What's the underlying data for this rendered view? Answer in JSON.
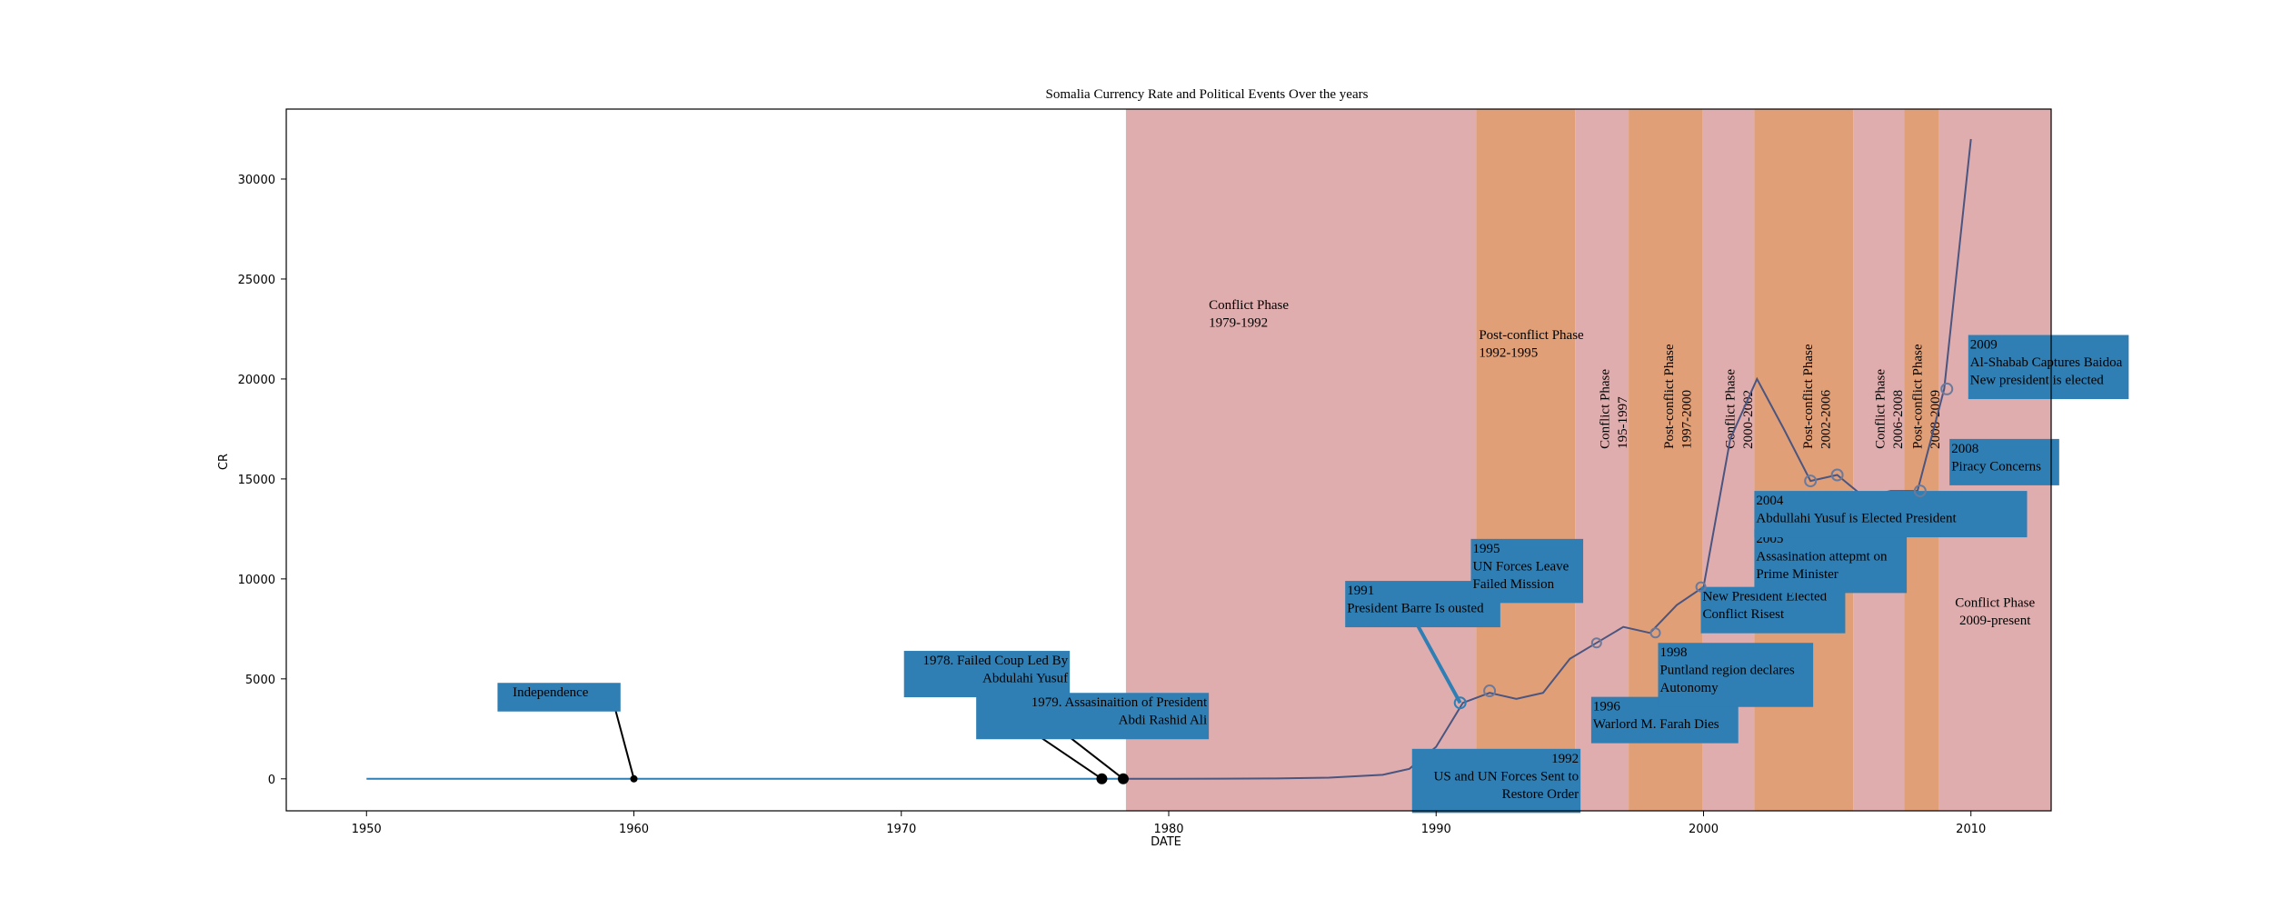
{
  "chart_data": {
    "type": "line",
    "title": "Somalia Currency Rate and Political Events Over the years",
    "xlabel": "DATE",
    "ylabel": "CR",
    "xlim": [
      1947,
      2013
    ],
    "ylim": [
      -1600,
      33500
    ],
    "x_ticks": [
      1950,
      1960,
      1970,
      1980,
      1990,
      2000,
      2010
    ],
    "y_ticks": [
      0,
      5000,
      10000,
      15000,
      20000,
      25000,
      30000
    ],
    "grid": false,
    "series": [
      {
        "role": "early",
        "x": [
          1950,
          1955,
          1960,
          1965,
          1970,
          1975,
          1978.4
        ],
        "y": [
          0,
          0,
          0,
          0,
          0,
          0,
          0
        ],
        "color": "#2f7fb5"
      },
      {
        "role": "main",
        "x": [
          1978.4,
          1980,
          1982,
          1984,
          1986,
          1988,
          1989,
          1990,
          1991,
          1992,
          1993,
          1994,
          1995,
          1996,
          1997,
          1998,
          1999,
          2000,
          2001,
          2002,
          2003,
          2004,
          2005,
          2006,
          2007,
          2008,
          2009,
          2010
        ],
        "y": [
          0,
          0,
          10,
          20,
          60,
          200,
          500,
          1600,
          3800,
          4300,
          4000,
          4300,
          6000,
          6800,
          7600,
          7300,
          8700,
          9600,
          17000,
          20000,
          17500,
          14900,
          15200,
          14100,
          14400,
          14400,
          19500,
          32000
        ],
        "color": "#4a5580"
      }
    ],
    "phases": [
      {
        "label": "Conflict Phase\n1979-1992",
        "start": 1978.4,
        "end": 1991.5,
        "kind": "conflict",
        "label_x": 1981.5,
        "label_y": 23500,
        "rotated": false
      },
      {
        "label": "Post-conflict Phase\n1992-1995",
        "start": 1991.5,
        "end": 1995.2,
        "kind": "post",
        "label_x": 1991.6,
        "label_y": 22000,
        "rotated": false
      },
      {
        "label": "Conflict Phase\n195-1997",
        "start": 1995.2,
        "end": 1997.2,
        "kind": "conflict",
        "label_x": 1996.6,
        "label_y": 16500,
        "rotated": true
      },
      {
        "label": "Post-conflict Phase\n1997-2000",
        "start": 1997.2,
        "end": 1999.95,
        "kind": "post",
        "label_x": 1999.0,
        "label_y": 16500,
        "rotated": true
      },
      {
        "label": "Conflict Phase\n2000-2002",
        "start": 1999.95,
        "end": 2001.9,
        "kind": "conflict",
        "label_x": 2001.3,
        "label_y": 16500,
        "rotated": true
      },
      {
        "label": "Post-conflict Phase\n2002-2006",
        "start": 2001.9,
        "end": 2005.6,
        "kind": "post",
        "label_x": 2004.2,
        "label_y": 16500,
        "rotated": true
      },
      {
        "label": "Conflict Phase\n2006-2008",
        "start": 2005.6,
        "end": 2007.5,
        "kind": "conflict",
        "label_x": 2006.9,
        "label_y": 16500,
        "rotated": true
      },
      {
        "label": "Post-conflict Phase\n2008-2009",
        "start": 2007.5,
        "end": 2008.8,
        "kind": "post",
        "label_x": 2008.3,
        "label_y": 16500,
        "rotated": true
      },
      {
        "label": "Conflict Phase\n2009-present",
        "start": 2008.8,
        "end": 2013,
        "kind": "conflict",
        "label_x": 2010.9,
        "label_y": 8600,
        "rotated": false
      }
    ],
    "phase_colors": {
      "conflict": "#e0adae",
      "post": "#e19f77"
    },
    "annotations": [
      {
        "text": "Independence",
        "box_x": 1954.9,
        "box_y": 4800,
        "box_w": 4.6,
        "align": "left",
        "pad_left": 0.5,
        "arrow_from": [
          1959.3,
          3500
        ],
        "point": [
          1960,
          0
        ],
        "point_r": 4,
        "arrow_style": "line"
      },
      {
        "text": "1978. Failed Coup Led By\nAbdulahi Yusuf",
        "box_x": 1970.1,
        "box_y": 6400,
        "box_w": 6.2,
        "align": "right",
        "pad_left": 0,
        "arrow_from": [
          1972.2,
          4800
        ],
        "point": [
          1977.5,
          0
        ],
        "point_r": 6,
        "arrow_style": "line",
        "start_dot": 4
      },
      {
        "text": "1979. Assasinaition of President\nAbdi Rashid Ali",
        "box_x": 1972.8,
        "box_y": 4300,
        "box_w": 8.7,
        "align": "right",
        "pad_left": 0,
        "arrow_from": [
          1975.7,
          2700
        ],
        "point": [
          1978.3,
          0
        ],
        "point_r": 6,
        "arrow_style": "line",
        "start_dot": 6
      },
      {
        "text": "1991\nPresident Barre Is ousted",
        "box_x": 1986.6,
        "box_y": 9900,
        "box_w": 5.8,
        "align": "left",
        "pad_left": 0,
        "arrow_from": [
          1989.3,
          7700
        ],
        "point": [
          1990.9,
          3800
        ],
        "point_r": 6,
        "arrow_style": "thick",
        "open_point": true
      },
      {
        "text": "1995\nUN Forces Leave\nFailed Mission",
        "box_x": 1991.3,
        "box_y": 12000,
        "box_w": 4.2,
        "align": "left",
        "pad_left": 0,
        "point": [
          1992.0,
          4400
        ],
        "point_r": 6,
        "open_point": true
      },
      {
        "text": "1992\nUS and UN Forces Sent to\nRestore Order",
        "box_x": 1989.1,
        "box_y": 1500,
        "box_w": 6.3,
        "align": "right",
        "pad_left": 0
      },
      {
        "text": "1996\nWarlord M. Farah Dies",
        "box_x": 1995.8,
        "box_y": 4100,
        "box_w": 5.5,
        "align": "left",
        "pad_left": 0,
        "point": [
          1996.0,
          6800
        ],
        "point_r": 5,
        "open_point": true
      },
      {
        "text": "1998\nPuntland region declares\nAutonomy",
        "box_x": 1998.3,
        "box_y": 6800,
        "box_w": 5.8,
        "align": "left",
        "pad_left": 0,
        "point": [
          1998.2,
          7300
        ],
        "point_r": 5,
        "open_point": true
      },
      {
        "text": "New President Elected\nConflict Risest",
        "box_x": 1999.9,
        "box_y": 9600,
        "box_w": 5.4,
        "align": "left",
        "pad_left": 0,
        "point": [
          1999.9,
          9600
        ],
        "point_r": 5,
        "open_point": true
      },
      {
        "text": "2005\nAssasination attepmt on\nPrime Minister",
        "box_x": 2001.9,
        "box_y": 12500,
        "box_w": 5.7,
        "align": "left",
        "pad_left": 0,
        "point": [
          2005.0,
          15200
        ],
        "point_r": 6,
        "open_point": true
      },
      {
        "text": "2004\nAbdullahi Yusuf is Elected President",
        "box_x": 2001.9,
        "box_y": 14400,
        "box_w": 10.2,
        "align": "left",
        "pad_left": 0,
        "point": [
          2004.0,
          14900
        ],
        "point_r": 6,
        "open_point": true
      },
      {
        "text": "2008\nPiracy Concerns",
        "box_x": 2009.2,
        "box_y": 17000,
        "box_w": 4.1,
        "align": "left",
        "pad_left": 0,
        "point": [
          2008.1,
          14400
        ],
        "point_r": 6,
        "open_point": true
      },
      {
        "text": "2009\nAl-Shabab Captures Baidoa\nNew president is elected",
        "box_x": 2009.9,
        "box_y": 22200,
        "box_w": 6.0,
        "align": "left",
        "pad_left": 0,
        "point": [
          2009.1,
          19500
        ],
        "point_r": 6,
        "open_point": true
      }
    ]
  }
}
